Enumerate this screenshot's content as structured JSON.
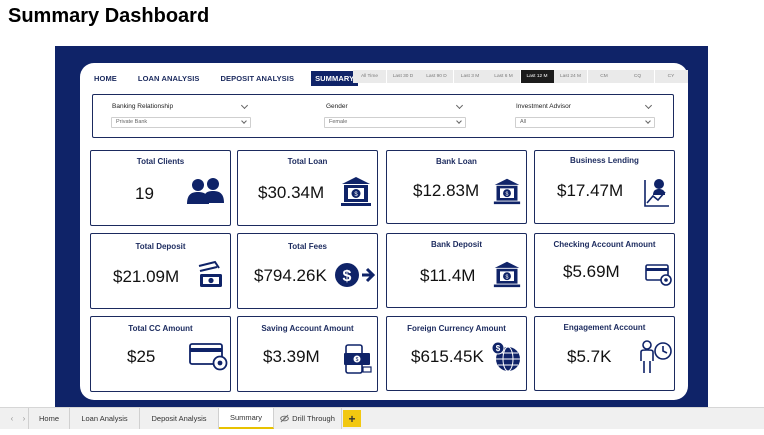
{
  "page_title": "Summary Dashboard",
  "nav": {
    "items": [
      {
        "label": "HOME",
        "active": false
      },
      {
        "label": "LOAN ANALYSIS",
        "active": false
      },
      {
        "label": "DEPOSIT ANALYSIS",
        "active": false
      },
      {
        "label": "SUMMARY",
        "active": true
      }
    ]
  },
  "time_tabs": [
    {
      "label": "All Time",
      "active": false
    },
    {
      "label": "Last 30 D",
      "active": false
    },
    {
      "label": "Last 90 D",
      "active": false
    },
    {
      "label": "Last 3 M",
      "active": false
    },
    {
      "label": "Last 6 M",
      "active": false
    },
    {
      "label": "Last 12 M",
      "active": true
    },
    {
      "label": "Last 24 M",
      "active": false
    },
    {
      "label": "CM",
      "active": false
    },
    {
      "label": "CQ",
      "active": false
    },
    {
      "label": "CY",
      "active": false
    }
  ],
  "filters": {
    "banking_relationship": {
      "label": "Banking Relationship",
      "value": "Private Bank"
    },
    "gender": {
      "label": "Gender",
      "value": "Female"
    },
    "investment_advisor": {
      "label": "Investment Advisor",
      "value": "All"
    }
  },
  "cards": {
    "total_clients": {
      "title": "Total Clients",
      "value": "19",
      "icon": "users-icon"
    },
    "total_loan": {
      "title": "Total Loan",
      "value": "$30.34M",
      "icon": "bank-dollar-icon"
    },
    "bank_loan": {
      "title": "Bank Loan",
      "value": "$12.83M",
      "icon": "bank-dollar-icon"
    },
    "business_lending": {
      "title": "Business Lending",
      "value": "$17.47M",
      "icon": "person-chart-icon"
    },
    "total_deposit": {
      "title": "Total Deposit",
      "value": "$21.09M",
      "icon": "money-hand-icon"
    },
    "total_fees": {
      "title": "Total Fees",
      "value": "$794.26K",
      "icon": "dollar-arrow-icon"
    },
    "bank_deposit": {
      "title": "Bank Deposit",
      "value": "$11.4M",
      "icon": "bank-dollar-icon"
    },
    "checking_account_amount": {
      "title": "Checking Account Amount",
      "value": "$5.69M",
      "icon": "card-gear-icon"
    },
    "total_cc_amount": {
      "title": "Total CC Amount",
      "value": "$25",
      "icon": "card-gear-icon"
    },
    "saving_account_amount": {
      "title": "Saving Account Amount",
      "value": "$3.39M",
      "icon": "cash-stack-icon"
    },
    "foreign_currency_amount": {
      "title": "Foreign Currency Amount",
      "value": "$615.45K",
      "icon": "globe-dollar-icon"
    },
    "engagement_account": {
      "title": "Engagement Account",
      "value": "$5.7K",
      "icon": "person-clock-icon"
    }
  },
  "sheet_tabs": [
    {
      "label": "Home",
      "active": false
    },
    {
      "label": "Loan Analysis",
      "active": false
    },
    {
      "label": "Deposit Analysis",
      "active": false
    },
    {
      "label": "Summary",
      "active": true
    },
    {
      "label": "Drill Through",
      "active": false
    }
  ],
  "add_tab_label": "+",
  "colors": {
    "navy": "#0f2368",
    "active_tab": "#1c1c1c",
    "accent_yellow": "#f2c811"
  }
}
